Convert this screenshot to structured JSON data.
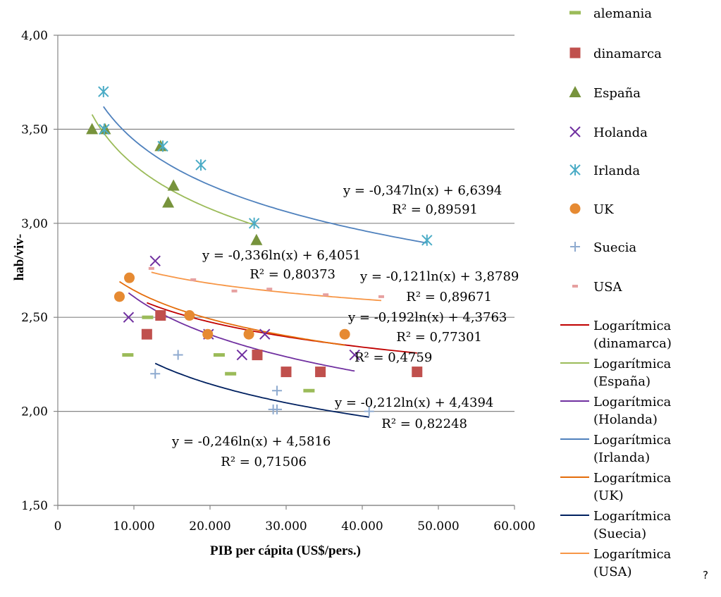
{
  "chart_data": {
    "type": "scatter",
    "xlabel": "PIB per cápita (US$/pers.)",
    "ylabel": "hab/viv-",
    "xlim": [
      0,
      60000
    ],
    "ylim": [
      1.5,
      4.0
    ],
    "x_tick_values": [
      0,
      10000,
      20000,
      30000,
      40000,
      50000,
      60000
    ],
    "x_tick_labels": [
      "0",
      "10.000",
      "20.000",
      "30.000",
      "40.000",
      "50.000",
      "60.000"
    ],
    "y_tick_values": [
      1.5,
      2.0,
      2.5,
      3.0,
      3.5,
      4.0
    ],
    "y_tick_labels": [
      "1,50",
      "2,00",
      "2,50",
      "3,00",
      "3,50",
      "4,00"
    ],
    "grid": "horizontal",
    "legend_position": "right",
    "series": [
      {
        "name": "alemania",
        "marker": "dash",
        "color": "#9bbb59",
        "points": [
          [
            9200,
            2.3
          ],
          [
            11800,
            2.5
          ],
          [
            21200,
            2.3
          ],
          [
            22700,
            2.2
          ],
          [
            33000,
            2.11
          ]
        ]
      },
      {
        "name": "dinamarca",
        "marker": "square",
        "color": "#c0504d",
        "points": [
          [
            11700,
            2.41
          ],
          [
            13500,
            2.51
          ],
          [
            26200,
            2.3
          ],
          [
            30000,
            2.21
          ],
          [
            34500,
            2.21
          ],
          [
            47200,
            2.21
          ]
        ]
      },
      {
        "name": "España",
        "marker": "triangle",
        "color": "#77933c",
        "points": [
          [
            4500,
            3.5
          ],
          [
            6200,
            3.5
          ],
          [
            13500,
            3.41
          ],
          [
            14500,
            3.11
          ],
          [
            15200,
            3.2
          ],
          [
            26100,
            2.91
          ]
        ]
      },
      {
        "name": "Holanda",
        "marker": "x",
        "color": "#7030a0",
        "points": [
          [
            9300,
            2.5
          ],
          [
            12800,
            2.8
          ],
          [
            19800,
            2.41
          ],
          [
            24200,
            2.3
          ],
          [
            27200,
            2.41
          ],
          [
            39000,
            2.3
          ]
        ]
      },
      {
        "name": "Irlanda",
        "marker": "asterisk",
        "color": "#4bacc6",
        "points": [
          [
            6000,
            3.7
          ],
          [
            6100,
            3.5
          ],
          [
            13800,
            3.41
          ],
          [
            18800,
            3.31
          ],
          [
            25800,
            3.0
          ],
          [
            48500,
            2.91
          ]
        ]
      },
      {
        "name": "UK",
        "marker": "circle",
        "color": "#e68a32",
        "points": [
          [
            8100,
            2.61
          ],
          [
            9400,
            2.71
          ],
          [
            17300,
            2.51
          ],
          [
            19700,
            2.41
          ],
          [
            25100,
            2.41
          ],
          [
            37700,
            2.41
          ]
        ]
      },
      {
        "name": "Suecia",
        "marker": "plus",
        "color": "#8eaacf",
        "points": [
          [
            12800,
            2.2
          ],
          [
            15800,
            2.3
          ],
          [
            28300,
            2.01
          ],
          [
            28800,
            2.01
          ],
          [
            28800,
            2.11
          ],
          [
            40900,
            2.0
          ]
        ]
      },
      {
        "name": "USA",
        "marker": "smalldash",
        "color": "#e6a0a0",
        "points": [
          [
            12300,
            2.76
          ],
          [
            17800,
            2.7
          ],
          [
            23200,
            2.64
          ],
          [
            27800,
            2.65
          ],
          [
            35200,
            2.62
          ],
          [
            42500,
            2.61
          ]
        ]
      }
    ],
    "trendlines": [
      {
        "name": "Logarítmica (dinamarca)",
        "color": "#c00000",
        "a": -0.192,
        "b": 4.3763,
        "x_range": [
          11700,
          47200
        ],
        "equation": "y = -0,192ln(x) + 4,3763",
        "r2": "R² = 0,77301"
      },
      {
        "name": "Logarítmica (España)",
        "color": "#9bbb59",
        "a": -0.336,
        "b": 6.4051,
        "x_range": [
          4500,
          26100
        ],
        "equation": "y = -0,336ln(x) + 6,4051",
        "r2": "R² = 0,80373"
      },
      {
        "name": "Logarítmica (Holanda)",
        "color": "#7030a0",
        "a": -0.29,
        "b": 5.28,
        "x_range": [
          9300,
          39000
        ],
        "equation": "",
        "r2": "R² = 0,4759"
      },
      {
        "name": "Logarítmica (Irlanda)",
        "color": "#4f81bd",
        "a": -0.347,
        "b": 6.6394,
        "x_range": [
          6000,
          48500
        ],
        "equation": "y = -0,347ln(x) + 6,6394",
        "r2": "R² = 0,89591"
      },
      {
        "name": "Logarítmica (UK)",
        "color": "#e46c0a",
        "a": -0.22,
        "b": 4.67,
        "x_range": [
          8100,
          37700
        ],
        "equation": "",
        "r2": ""
      },
      {
        "name": "Logarítmica (Suecia)",
        "color": "#002060",
        "a": -0.246,
        "b": 4.5816,
        "x_range": [
          12800,
          40900
        ],
        "equation": "y = -0,246ln(x) + 4,5816",
        "r2": "R² = 0,71506"
      },
      {
        "name": "Logarítmica (USA)",
        "color": "#f79646",
        "a": -0.121,
        "b": 3.8789,
        "x_range": [
          12300,
          42500
        ],
        "equation": "y = -0,121ln(x) + 3,8789",
        "r2": "R² = 0,89671"
      }
    ],
    "annotations": [
      {
        "text": "y = -0,347ln(x) + 6,6394"
      },
      {
        "text": "R² = 0,89591"
      },
      {
        "text": "y = -0,336ln(x) + 6,4051"
      },
      {
        "text": "R² = 0,80373"
      },
      {
        "text": "y = -0,121ln(x) + 3,8789"
      },
      {
        "text": "R² = 0,89671"
      },
      {
        "text": "y = -0,192ln(x) + 4,3763"
      },
      {
        "text": "R² = 0,77301"
      },
      {
        "text": "R² = 0,4759"
      },
      {
        "text": "y = -0,212ln(x) + 4,4394"
      },
      {
        "text": "R² = 0,82248"
      },
      {
        "text": "y = -0,246ln(x) + 4,5816"
      },
      {
        "text": "R² = 0,71506"
      }
    ]
  },
  "legend": {
    "marker_entries": [
      "alemania",
      "dinamarca",
      "España",
      "Holanda",
      "Irlanda",
      "UK",
      "Suecia",
      "USA"
    ],
    "line_entries": [
      {
        "line1": "Logarítmica",
        "line2": "(dinamarca)"
      },
      {
        "line1": "Logarítmica",
        "line2": "(España)"
      },
      {
        "line1": "Logarítmica",
        "line2": "(Holanda)"
      },
      {
        "line1": "Logarítmica",
        "line2": "(Irlanda)"
      },
      {
        "line1": "Logarítmica",
        "line2": "(UK)"
      },
      {
        "line1": "Logarítmica",
        "line2": "(Suecia)"
      },
      {
        "line1": "Logarítmica",
        "line2": "(USA)"
      }
    ]
  },
  "stray_mark": "?"
}
